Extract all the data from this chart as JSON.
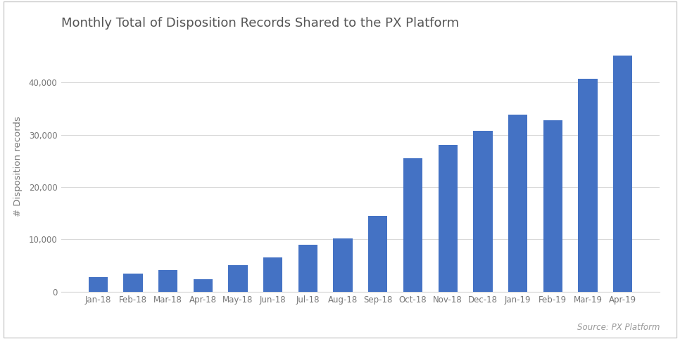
{
  "title": "Monthly Total of Disposition Records Shared to the PX Platform",
  "ylabel": "# Disposition records",
  "source_text": "Source: PX Platform",
  "categories": [
    "Jan-18",
    "Feb-18",
    "Mar-18",
    "Apr-18",
    "May-18",
    "Jun-18",
    "Jul-18",
    "Aug-18",
    "Sep-18",
    "Oct-18",
    "Nov-18",
    "Dec-18",
    "Jan-19",
    "Feb-19",
    "Mar-19",
    "Apr-19"
  ],
  "values": [
    2800,
    3400,
    4100,
    2300,
    5000,
    6500,
    9000,
    10200,
    14500,
    25500,
    28000,
    30700,
    33800,
    32800,
    40700,
    45200
  ],
  "bar_color": "#4472C4",
  "background_color": "#ffffff",
  "border_color": "#cccccc",
  "ylim": [
    0,
    48000
  ],
  "yticks": [
    0,
    10000,
    20000,
    30000,
    40000
  ],
  "grid_color": "#d9d9d9",
  "title_fontsize": 13,
  "label_fontsize": 9.5,
  "tick_fontsize": 8.5,
  "source_fontsize": 8.5,
  "figure_width": 9.66,
  "figure_height": 4.82,
  "dpi": 100
}
